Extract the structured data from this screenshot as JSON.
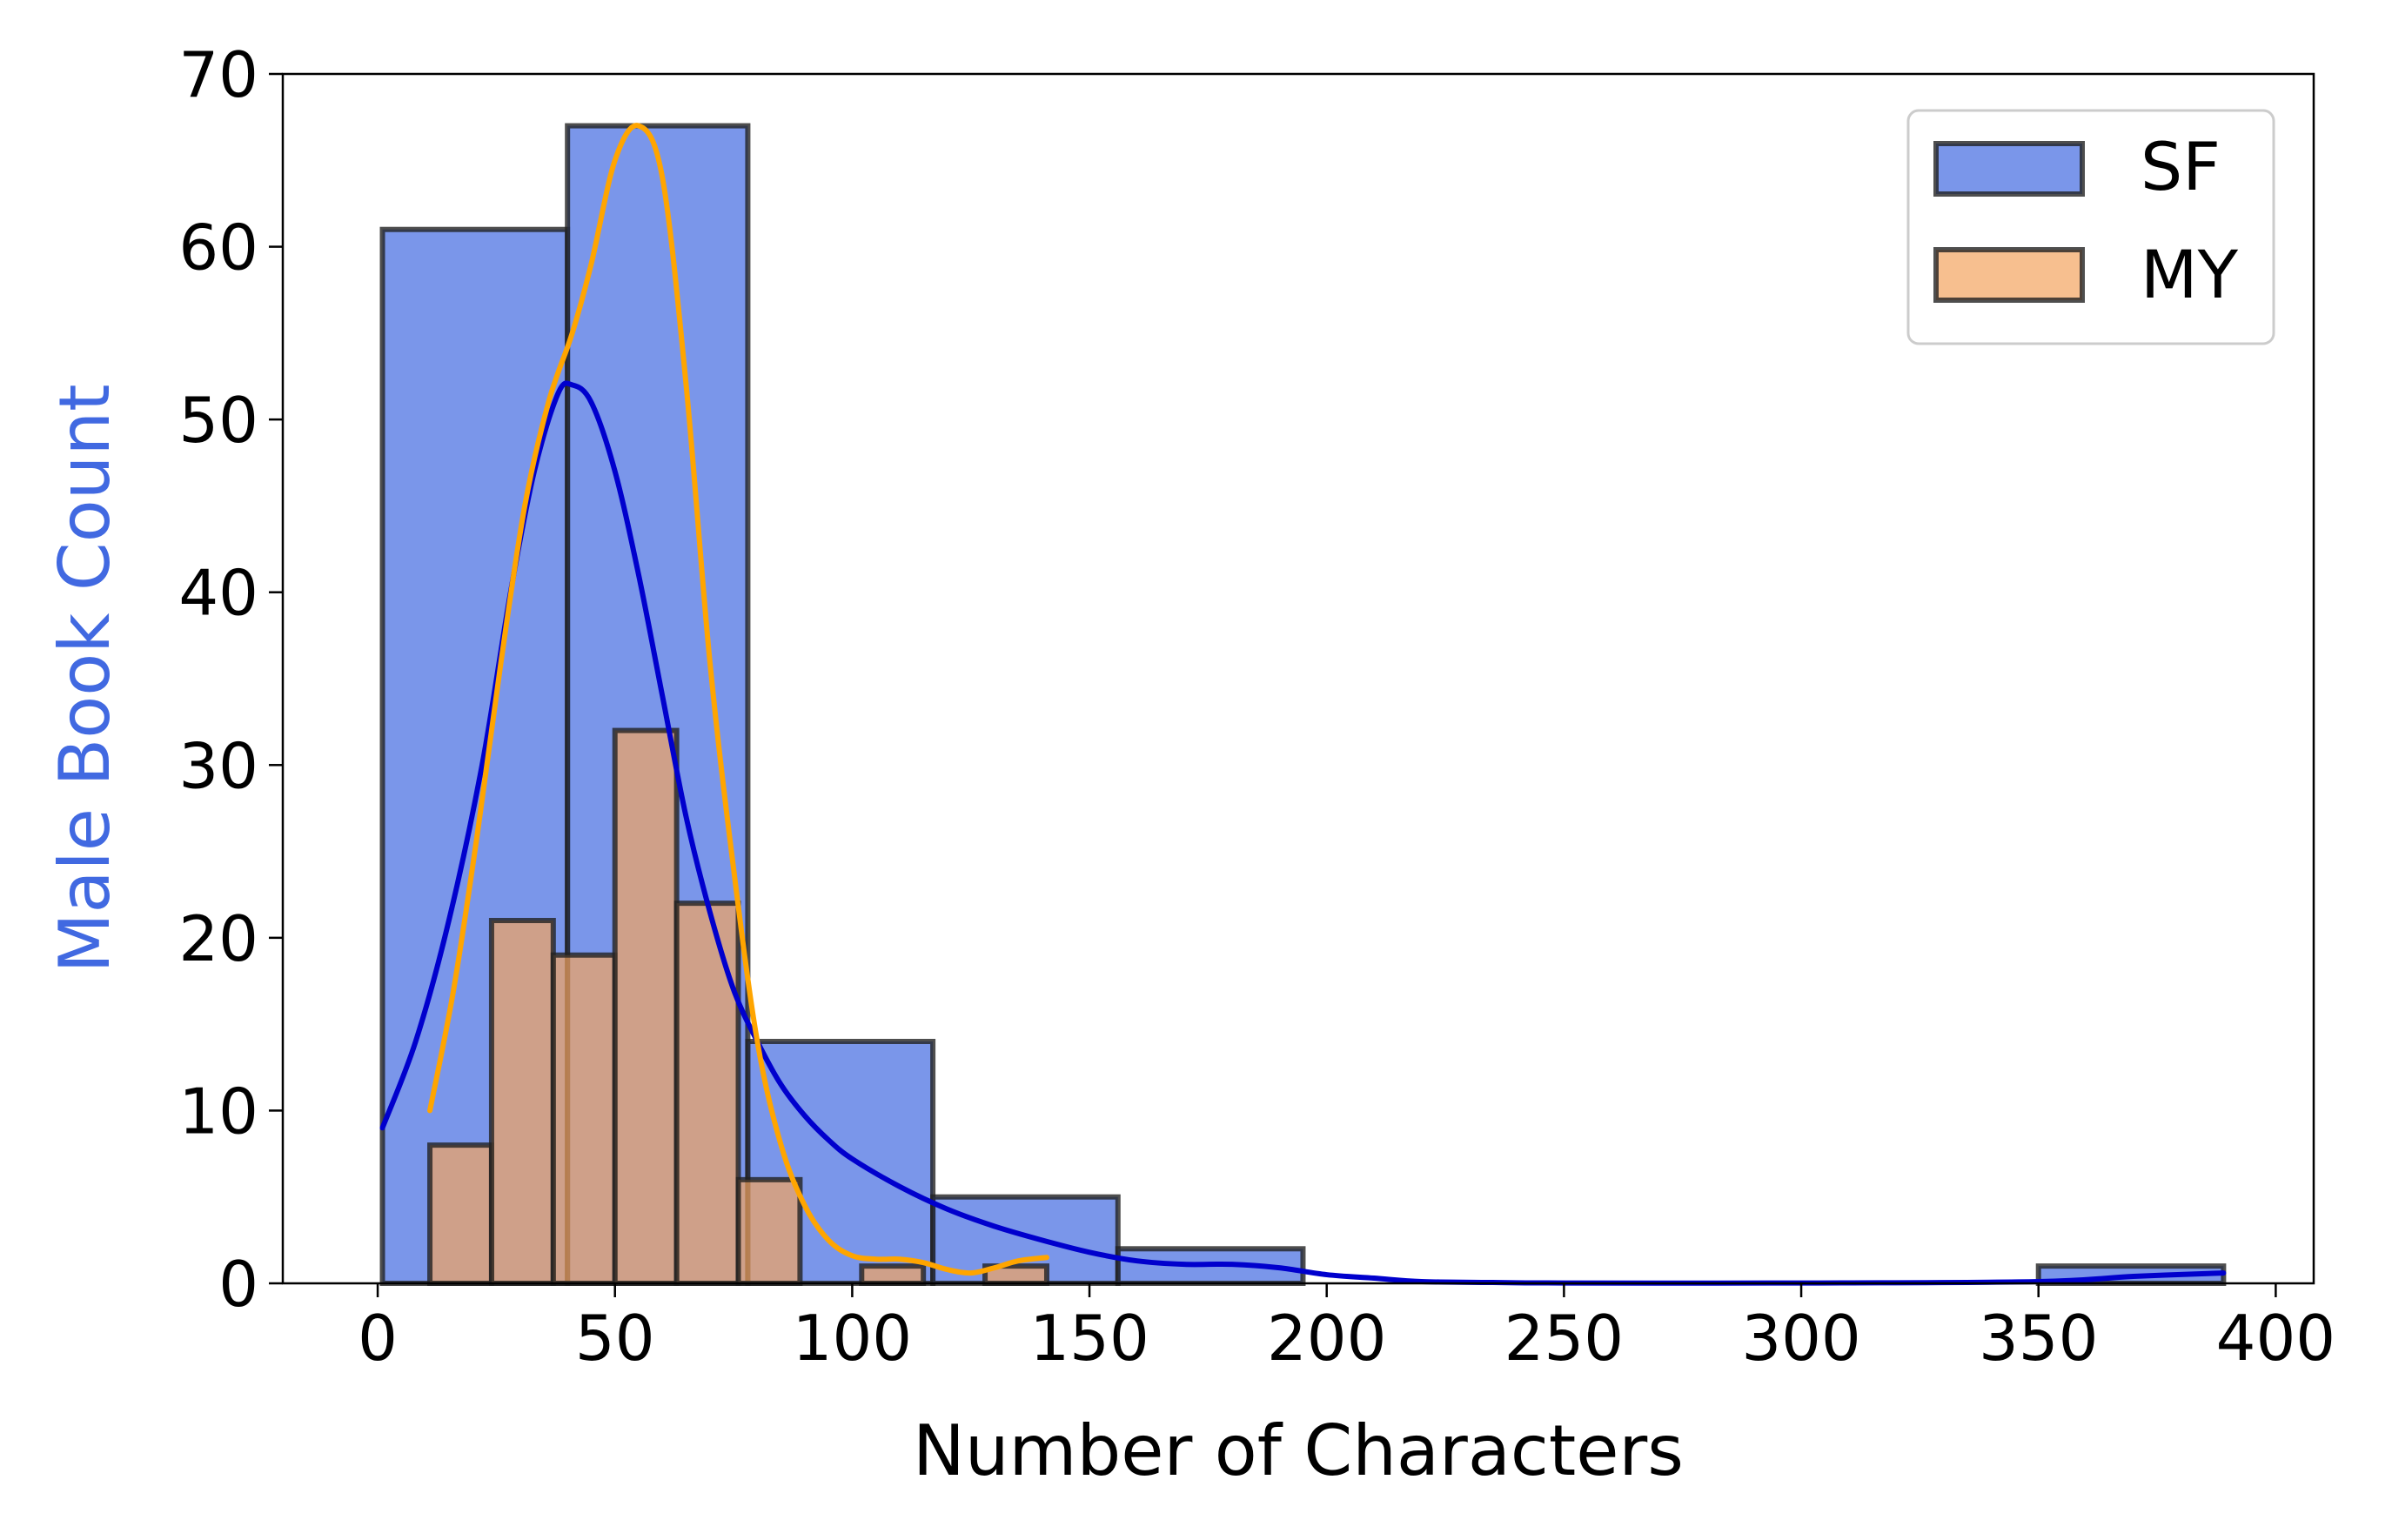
{
  "chart_data": {
    "type": "histogram",
    "xlabel": "Number of Characters",
    "ylabel": "Male Book Count",
    "xlim": [
      -20,
      408
    ],
    "ylim": [
      0,
      70
    ],
    "x_ticks": [
      0,
      50,
      100,
      150,
      200,
      250,
      300,
      350,
      400
    ],
    "y_ticks": [
      0,
      10,
      20,
      30,
      40,
      50,
      60,
      70
    ],
    "grid": false,
    "legend": {
      "placement": "top-right",
      "entries": [
        "SF",
        "MY"
      ]
    },
    "series": [
      {
        "name": "SF",
        "fill": "#4169E1",
        "kde_color": "#0000CD",
        "bins": [
          {
            "x0": 1,
            "x1": 40,
            "count": 61
          },
          {
            "x0": 40,
            "x1": 78,
            "count": 67
          },
          {
            "x0": 78,
            "x1": 117,
            "count": 14
          },
          {
            "x0": 117,
            "x1": 156,
            "count": 5
          },
          {
            "x0": 156,
            "x1": 195,
            "count": 2
          },
          {
            "x0": 195,
            "x1": 234,
            "count": 0
          },
          {
            "x0": 234,
            "x1": 272,
            "count": 0
          },
          {
            "x0": 272,
            "x1": 311,
            "count": 0
          },
          {
            "x0": 311,
            "x1": 350,
            "count": 0
          },
          {
            "x0": 350,
            "x1": 389,
            "count": 1
          }
        ],
        "kde": [
          [
            1,
            9
          ],
          [
            8,
            14
          ],
          [
            15,
            21
          ],
          [
            22,
            30
          ],
          [
            28,
            40
          ],
          [
            33,
            47
          ],
          [
            38,
            51.5
          ],
          [
            41,
            52
          ],
          [
            45,
            51
          ],
          [
            50,
            47
          ],
          [
            55,
            41
          ],
          [
            60,
            34
          ],
          [
            65,
            27
          ],
          [
            70,
            21.5
          ],
          [
            75,
            17
          ],
          [
            80,
            14
          ],
          [
            85,
            11.5
          ],
          [
            90,
            9.7
          ],
          [
            95,
            8.3
          ],
          [
            100,
            7.2
          ],
          [
            110,
            5.6
          ],
          [
            120,
            4.3
          ],
          [
            130,
            3.3
          ],
          [
            140,
            2.5
          ],
          [
            150,
            1.8
          ],
          [
            160,
            1.3
          ],
          [
            170,
            1.1
          ],
          [
            180,
            1.1
          ],
          [
            190,
            0.9
          ],
          [
            200,
            0.5
          ],
          [
            210,
            0.3
          ],
          [
            220,
            0.1
          ],
          [
            235,
            0.05
          ],
          [
            250,
            0.02
          ],
          [
            300,
            0.02
          ],
          [
            350,
            0.1
          ],
          [
            370,
            0.4
          ],
          [
            389,
            0.6
          ]
        ]
      },
      {
        "name": "MY",
        "fill": "#F4A460",
        "kde_color": "#FFA500",
        "bins": [
          {
            "x0": 11,
            "x1": 24,
            "count": 8
          },
          {
            "x0": 24,
            "x1": 37,
            "count": 21
          },
          {
            "x0": 37,
            "x1": 50,
            "count": 19
          },
          {
            "x0": 50,
            "x1": 63,
            "count": 32
          },
          {
            "x0": 63,
            "x1": 76,
            "count": 22
          },
          {
            "x0": 76,
            "x1": 89,
            "count": 6
          },
          {
            "x0": 89,
            "x1": 102,
            "count": 0
          },
          {
            "x0": 102,
            "x1": 115,
            "count": 1
          },
          {
            "x0": 115,
            "x1": 128,
            "count": 0
          },
          {
            "x0": 128,
            "x1": 141,
            "count": 1
          }
        ],
        "kde": [
          [
            11,
            10
          ],
          [
            16,
            17
          ],
          [
            21,
            26
          ],
          [
            26,
            36
          ],
          [
            31,
            45
          ],
          [
            36,
            51
          ],
          [
            41,
            55
          ],
          [
            45,
            59
          ],
          [
            50,
            65
          ],
          [
            55,
            67
          ],
          [
            60,
            64
          ],
          [
            65,
            52
          ],
          [
            70,
            36
          ],
          [
            75,
            24
          ],
          [
            80,
            14
          ],
          [
            85,
            8
          ],
          [
            90,
            4.5
          ],
          [
            95,
            2.5
          ],
          [
            100,
            1.6
          ],
          [
            105,
            1.4
          ],
          [
            110,
            1.4
          ],
          [
            115,
            1.2
          ],
          [
            120,
            0.8
          ],
          [
            125,
            0.6
          ],
          [
            130,
            0.9
          ],
          [
            135,
            1.3
          ],
          [
            141,
            1.5
          ]
        ]
      }
    ]
  }
}
